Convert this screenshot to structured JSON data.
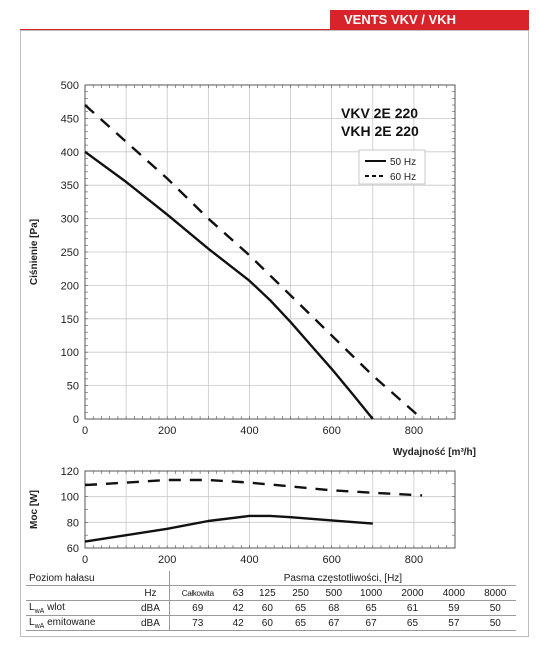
{
  "header": {
    "title": "VENTS VKV / VKH"
  },
  "chart_data": [
    {
      "type": "line",
      "title": "",
      "xlabel": "Wydajność [m³/h]",
      "ylabel": "Ciśnienie [Pa]",
      "xlim": [
        0,
        900
      ],
      "ylim": [
        0,
        500
      ],
      "x_ticks": [
        0,
        200,
        400,
        600,
        800
      ],
      "y_ticks": [
        0,
        50,
        100,
        150,
        200,
        250,
        300,
        350,
        400,
        450,
        500
      ],
      "grid": true,
      "model_labels": [
        "VKV  2E 220",
        "VKH 2E 220"
      ],
      "legend": {
        "placement": "top-right",
        "entries": [
          {
            "label": "50 Hz",
            "style": "solid"
          },
          {
            "label": "60 Hz",
            "style": "dashed"
          }
        ]
      },
      "series": [
        {
          "name": "50 Hz",
          "style": "solid",
          "x": [
            0,
            100,
            200,
            300,
            400,
            450,
            500,
            550,
            600,
            650,
            700
          ],
          "y": [
            400,
            355,
            306,
            255,
            207,
            178,
            145,
            110,
            75,
            38,
            0
          ]
        },
        {
          "name": "60 Hz",
          "style": "dashed",
          "x": [
            0,
            100,
            200,
            300,
            400,
            500,
            600,
            700,
            820
          ],
          "y": [
            470,
            415,
            360,
            300,
            245,
            185,
            125,
            65,
            0
          ]
        }
      ]
    },
    {
      "type": "line",
      "title": "",
      "xlabel": "",
      "ylabel": "Moc [W]",
      "xlim": [
        0,
        900
      ],
      "ylim": [
        60,
        120
      ],
      "x_ticks": [
        0,
        200,
        400,
        600,
        800
      ],
      "y_ticks": [
        60,
        80,
        100,
        120
      ],
      "grid": true,
      "series": [
        {
          "name": "50 Hz",
          "style": "solid",
          "x": [
            0,
            100,
            200,
            300,
            400,
            450,
            500,
            600,
            700
          ],
          "y": [
            65,
            70,
            75,
            81,
            85,
            85,
            84,
            81.5,
            79
          ]
        },
        {
          "name": "60 Hz",
          "style": "dashed",
          "x": [
            0,
            100,
            200,
            300,
            400,
            500,
            600,
            700,
            820
          ],
          "y": [
            109,
            111,
            113,
            113,
            111,
            108,
            105,
            103,
            101
          ]
        }
      ]
    }
  ],
  "noise_table": {
    "title": "Poziom hałasu",
    "bands_label": "Pasma częstotliwości, [Hz]",
    "unit_header": "Hz",
    "total_header": "Całkowita",
    "bands": [
      "63",
      "125",
      "250",
      "500",
      "1000",
      "2000",
      "4000",
      "8000"
    ],
    "rows": [
      {
        "prefix": "L",
        "sub": "wA",
        "name": " wlot",
        "unit": "dBA",
        "total": "69",
        "values": [
          "42",
          "60",
          "65",
          "68",
          "65",
          "61",
          "59",
          "50"
        ]
      },
      {
        "prefix": "L",
        "sub": "wA",
        "name": " emitowane",
        "unit": "dBA",
        "total": "73",
        "values": [
          "42",
          "60",
          "65",
          "67",
          "67",
          "65",
          "57",
          "50"
        ]
      }
    ]
  }
}
